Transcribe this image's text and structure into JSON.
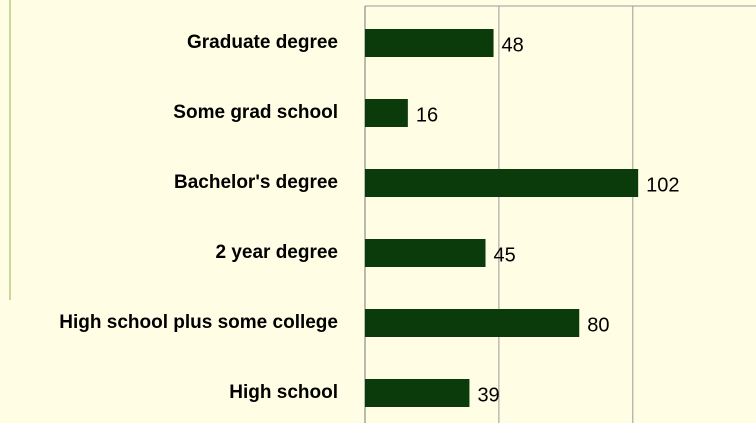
{
  "chart_data": {
    "type": "bar",
    "orientation": "horizontal",
    "categories": [
      "Graduate degree",
      "Some grad school",
      "Bachelor's degree",
      "2 year degree",
      "High school plus some college",
      "High school"
    ],
    "values": [
      48,
      16,
      102,
      45,
      80,
      39
    ],
    "color": "#0b3b0b",
    "xlim": [
      0,
      146
    ],
    "xticks": [
      0,
      50,
      100
    ],
    "grid": true
  }
}
